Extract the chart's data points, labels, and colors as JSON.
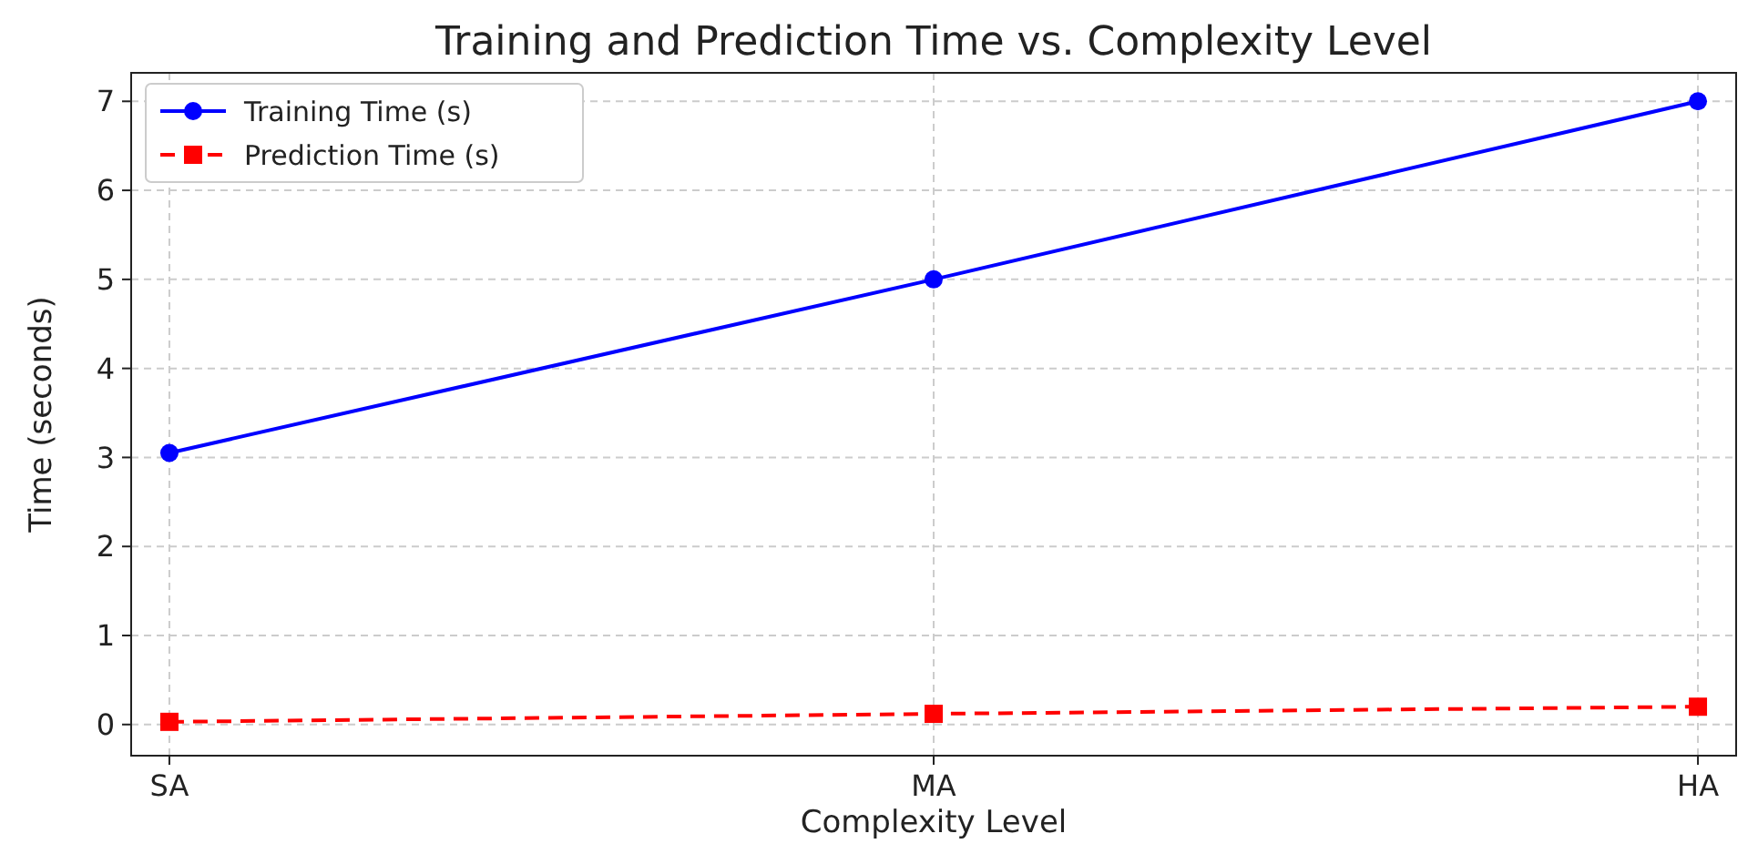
{
  "chart_data": {
    "type": "line",
    "title": "Training and Prediction Time vs. Complexity Level",
    "xlabel": "Complexity Level",
    "ylabel": "Time (seconds)",
    "categories": [
      "SA",
      "MA",
      "HA"
    ],
    "series": [
      {
        "name": "Training Time (s)",
        "color": "#0000ff",
        "values": [
          3.05,
          5.0,
          7.0
        ],
        "marker": "circle",
        "line_style": "solid"
      },
      {
        "name": "Prediction Time (s)",
        "color": "#ff0000",
        "values": [
          0.03,
          0.12,
          0.2
        ],
        "marker": "square",
        "line_style": "dashed"
      }
    ],
    "ylim": [
      -0.35,
      7.32
    ],
    "yticks": [
      0,
      1,
      2,
      3,
      4,
      5,
      6,
      7
    ],
    "grid": true,
    "legend": "top left"
  }
}
